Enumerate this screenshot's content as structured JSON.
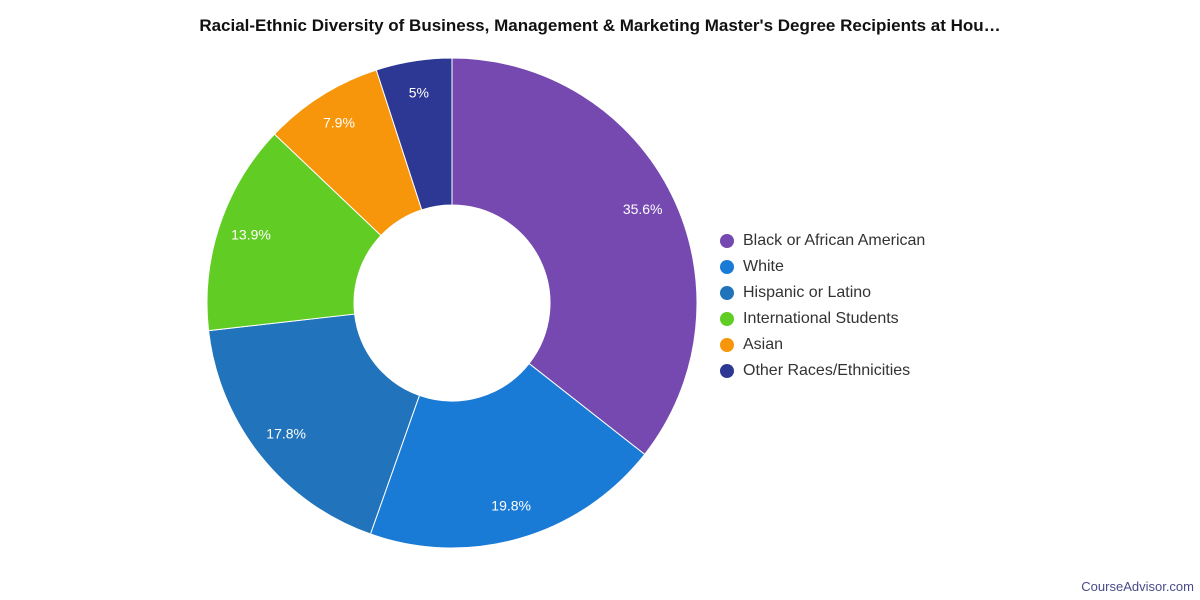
{
  "chart_data": {
    "type": "pie",
    "title": "Racial-Ethnic Diversity of Business, Management & Marketing Master's Degree Recipients at Hou…",
    "donut": true,
    "legend_position": "right",
    "slices": [
      {
        "label": "Black or African American",
        "value": 35.6,
        "display": "35.6%",
        "color": "#7549b0"
      },
      {
        "label": "White",
        "value": 19.8,
        "display": "19.8%",
        "color": "#1a7bd6"
      },
      {
        "label": "Hispanic or Latino",
        "value": 17.8,
        "display": "17.8%",
        "color": "#2173bb"
      },
      {
        "label": "International Students",
        "value": 13.9,
        "display": "13.9%",
        "color": "#61cc24"
      },
      {
        "label": "Asian",
        "value": 7.9,
        "display": "7.9%",
        "color": "#f7960a"
      },
      {
        "label": "Other Races/Ethnicities",
        "value": 5,
        "display": "5%",
        "color": "#2d3894"
      }
    ]
  },
  "source": "CourseAdvisor.com"
}
